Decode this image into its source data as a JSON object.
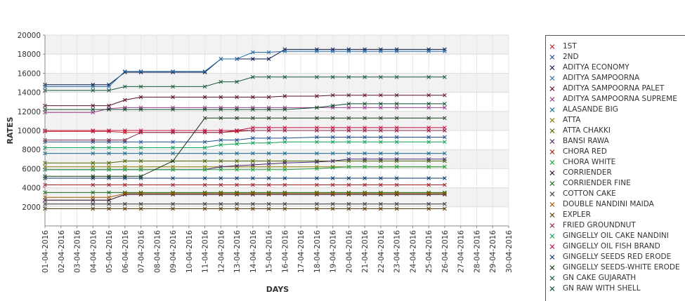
{
  "chart_data": {
    "type": "line",
    "xlabel": "DAYS",
    "ylabel": "RATES",
    "ylim": [
      0,
      20000
    ],
    "yticks": [
      2000,
      4000,
      6000,
      8000,
      10000,
      12000,
      14000,
      16000,
      18000,
      20000
    ],
    "grid": true,
    "legend_position": "right",
    "categories": [
      "01-04-2016",
      "02-04-2016",
      "03-04-2016",
      "04-04-2016",
      "05-04-2016",
      "06-04-2016",
      "07-04-2016",
      "08-04-2016",
      "09-04-2016",
      "10-04-2016",
      "11-04-2016",
      "12-04-2016",
      "13-04-2016",
      "14-04-2016",
      "15-04-2016",
      "16-04-2016",
      "17-04-2016",
      "18-04-2016",
      "19-04-2016",
      "20-04-2016",
      "21-04-2016",
      "22-04-2016",
      "23-04-2016",
      "24-04-2016",
      "25-04-2016",
      "26-04-2016",
      "27-04-2016",
      "28-04-2016",
      "29-04-2016",
      "30-04-2016"
    ],
    "series": [
      {
        "name": "1ST",
        "color": "#c0282a",
        "values": [
          9900,
          null,
          null,
          9900,
          9900,
          9800,
          9800,
          null,
          9800,
          null,
          9800,
          9800,
          9900,
          10000,
          10000,
          10000,
          null,
          10000,
          10000,
          10000,
          10000,
          10000,
          10000,
          null,
          10000,
          10000,
          null,
          null,
          null,
          null
        ]
      },
      {
        "name": "2ND",
        "color": "#1f4e8c",
        "values": [
          8800,
          null,
          null,
          8800,
          8800,
          8800,
          8800,
          null,
          8800,
          null,
          8800,
          9000,
          9000,
          9200,
          9200,
          9200,
          null,
          9300,
          9300,
          9300,
          9300,
          9300,
          9300,
          null,
          9300,
          9300,
          null,
          null,
          null,
          null
        ]
      },
      {
        "name": "ADITYA ECONOMY",
        "color": "#0a1a4a",
        "values": [
          14800,
          null,
          null,
          14800,
          14800,
          16100,
          16100,
          null,
          16100,
          null,
          16100,
          17500,
          17500,
          17500,
          17500,
          18500,
          null,
          18500,
          18500,
          18500,
          18500,
          18500,
          18500,
          null,
          18500,
          18500,
          null,
          null,
          null,
          null
        ]
      },
      {
        "name": "ADITYA SAMPOORNA",
        "color": "#2a6fa8",
        "values": [
          14600,
          null,
          null,
          14600,
          14600,
          16200,
          16200,
          null,
          16200,
          null,
          16200,
          17500,
          17500,
          18200,
          18200,
          18300,
          null,
          18300,
          18300,
          18300,
          18300,
          18300,
          18300,
          null,
          18300,
          18300,
          null,
          null,
          null,
          null
        ]
      },
      {
        "name": "ADITYA SAMPOORNA PALET",
        "color": "#5a1020",
        "values": [
          12600,
          null,
          null,
          12600,
          12600,
          13200,
          13500,
          null,
          13500,
          null,
          13500,
          13500,
          13500,
          13500,
          13500,
          13600,
          null,
          13600,
          13700,
          13700,
          13700,
          13700,
          13700,
          null,
          13700,
          13700,
          null,
          null,
          null,
          null
        ]
      },
      {
        "name": "ADITYA SAMPOORNA SUPREME",
        "color": "#9a3a8a",
        "values": [
          11900,
          null,
          null,
          11900,
          12300,
          12400,
          12400,
          null,
          12400,
          null,
          12400,
          12400,
          12400,
          12400,
          12400,
          12400,
          null,
          12400,
          12400,
          12400,
          12400,
          12400,
          12400,
          null,
          12400,
          12400,
          null,
          null,
          null,
          null
        ]
      },
      {
        "name": "ALASANDE BIG",
        "color": "#1a6a8a",
        "values": [
          7600,
          null,
          null,
          7600,
          7600,
          7600,
          7600,
          null,
          7600,
          null,
          7600,
          7600,
          7600,
          7600,
          7600,
          7600,
          null,
          7600,
          7600,
          7600,
          7600,
          7600,
          7600,
          null,
          7600,
          7600,
          null,
          null,
          null,
          null
        ]
      },
      {
        "name": "ATTA",
        "color": "#8a7a00",
        "values": [
          6200,
          null,
          null,
          6200,
          6200,
          6200,
          6200,
          null,
          6200,
          null,
          6200,
          6200,
          6200,
          6200,
          6200,
          6200,
          null,
          6200,
          6200,
          6200,
          6200,
          6200,
          6200,
          null,
          6200,
          6200,
          null,
          null,
          null,
          null
        ]
      },
      {
        "name": "ATTA CHAKKI",
        "color": "#4a6a00",
        "values": [
          6600,
          null,
          null,
          6600,
          6600,
          6800,
          6800,
          null,
          6800,
          null,
          6800,
          6800,
          6800,
          6800,
          6800,
          6800,
          null,
          6800,
          6800,
          6800,
          6800,
          6800,
          6800,
          null,
          6800,
          6800,
          null,
          null,
          null,
          null
        ]
      },
      {
        "name": "BANSI RAWA",
        "color": "#4a2a6a",
        "values": [
          5900,
          null,
          null,
          5900,
          5900,
          5900,
          5900,
          null,
          5900,
          null,
          5900,
          6200,
          6300,
          6400,
          6500,
          6600,
          null,
          6700,
          6800,
          7000,
          7000,
          7000,
          7000,
          null,
          7000,
          7000,
          null,
          null,
          null,
          null
        ]
      },
      {
        "name": "CHORA RED",
        "color": "#a02020",
        "values": [
          4300,
          null,
          null,
          4300,
          4300,
          4300,
          4300,
          null,
          4300,
          null,
          4300,
          4300,
          4300,
          4300,
          4300,
          4300,
          null,
          4300,
          4300,
          4300,
          4300,
          4300,
          4300,
          null,
          4300,
          4300,
          null,
          null,
          null,
          null
        ]
      },
      {
        "name": "CHORA WHITE",
        "color": "#20a040",
        "values": [
          5900,
          null,
          null,
          5900,
          5900,
          5900,
          5900,
          null,
          5900,
          null,
          5900,
          5900,
          5900,
          5900,
          5900,
          5900,
          null,
          6000,
          6100,
          6200,
          6200,
          6200,
          6200,
          null,
          6200,
          6200,
          null,
          null,
          null,
          null
        ]
      },
      {
        "name": "CORRIENDER",
        "color": "#2a0a2a",
        "values": [
          2700,
          null,
          null,
          2700,
          2700,
          3300,
          3300,
          null,
          3300,
          null,
          3300,
          3300,
          3300,
          3300,
          3300,
          3300,
          null,
          3300,
          3300,
          3300,
          3300,
          3300,
          3300,
          null,
          3300,
          3300,
          null,
          null,
          null,
          null
        ]
      },
      {
        "name": "CORRIENDER FINE",
        "color": "#1a6a1a",
        "values": [
          3500,
          null,
          null,
          3500,
          3500,
          3500,
          3500,
          null,
          3500,
          null,
          3500,
          3500,
          3500,
          3500,
          3500,
          3500,
          null,
          3500,
          3500,
          3500,
          3500,
          3500,
          3500,
          null,
          3500,
          3500,
          null,
          null,
          null,
          null
        ]
      },
      {
        "name": "COTTON CAKE",
        "color": "#3a3a3a",
        "values": [
          2300,
          null,
          null,
          2300,
          2300,
          2300,
          2300,
          null,
          2300,
          null,
          2300,
          2300,
          2300,
          2300,
          2300,
          2300,
          null,
          2300,
          2300,
          2300,
          2300,
          2300,
          2300,
          null,
          2300,
          2300,
          null,
          null,
          null,
          null
        ]
      },
      {
        "name": "DOUBLE NANDINI MAIDA",
        "color": "#a05a00",
        "values": [
          3000,
          null,
          null,
          3000,
          3000,
          3400,
          3400,
          null,
          3400,
          null,
          3400,
          3400,
          3400,
          3400,
          3400,
          3400,
          null,
          3400,
          3400,
          3400,
          3400,
          3400,
          3400,
          null,
          3400,
          3400,
          null,
          null,
          null,
          null
        ]
      },
      {
        "name": "EXPLER",
        "color": "#5a3a00",
        "values": [
          1800,
          null,
          null,
          1800,
          1800,
          1800,
          1800,
          null,
          1800,
          null,
          1800,
          1800,
          1800,
          1800,
          1800,
          1800,
          null,
          1800,
          1800,
          1800,
          1800,
          1800,
          1800,
          null,
          1800,
          1800,
          null,
          null,
          null,
          null
        ]
      },
      {
        "name": "FRIED GROUNDNUT",
        "color": "#8a2a4a",
        "values": [
          9000,
          null,
          null,
          9000,
          9000,
          9000,
          9800,
          null,
          9800,
          null,
          9800,
          9800,
          10000,
          10000,
          10000,
          10000,
          null,
          10000,
          10000,
          10000,
          10000,
          10000,
          10000,
          null,
          10000,
          10000,
          null,
          null,
          null,
          null
        ]
      },
      {
        "name": "GINGELLY OIL CAKE NANDINI",
        "color": "#10a050",
        "values": [
          8200,
          null,
          null,
          8200,
          8200,
          8200,
          8200,
          null,
          8200,
          null,
          8200,
          8500,
          8600,
          8700,
          8700,
          8800,
          null,
          8800,
          8800,
          8800,
          8800,
          8800,
          8800,
          null,
          8800,
          8800,
          null,
          null,
          null,
          null
        ]
      },
      {
        "name": "GINGELLY OIL FISH BRAND",
        "color": "#c01040",
        "values": [
          10000,
          null,
          null,
          10000,
          10000,
          10000,
          10000,
          null,
          10000,
          null,
          10000,
          10000,
          10000,
          10300,
          10300,
          10300,
          null,
          10300,
          10300,
          10300,
          10300,
          10300,
          10300,
          null,
          10300,
          10300,
          null,
          null,
          null,
          null
        ]
      },
      {
        "name": "GINGELLY SEEDS RED ERODE",
        "color": "#0a3a6a",
        "values": [
          5000,
          null,
          null,
          5000,
          5000,
          5000,
          5000,
          null,
          5000,
          null,
          5000,
          5000,
          5000,
          5000,
          5000,
          5000,
          null,
          5000,
          5000,
          5000,
          5000,
          5000,
          5000,
          null,
          5000,
          5000,
          null,
          null,
          null,
          null
        ]
      },
      {
        "name": "GINGELLY SEEDS-WHITE ERODE",
        "color": "#1a3a1a",
        "values": [
          5200,
          null,
          null,
          5200,
          5200,
          5200,
          5200,
          null,
          6800,
          null,
          11300,
          11300,
          11300,
          11300,
          11300,
          11300,
          null,
          11300,
          11300,
          11300,
          11300,
          11300,
          11300,
          null,
          11300,
          11300,
          null,
          null,
          null,
          null
        ]
      },
      {
        "name": "GN CAKE GUJARATH",
        "color": "#1a5a3a",
        "values": [
          14200,
          null,
          null,
          14200,
          14200,
          14600,
          14600,
          null,
          14600,
          null,
          14600,
          15100,
          15100,
          15600,
          15600,
          15600,
          null,
          15600,
          15600,
          15600,
          15600,
          15600,
          15600,
          null,
          15600,
          15600,
          null,
          null,
          null,
          null
        ]
      },
      {
        "name": "GN RAW WITH SHELL",
        "color": "#0a4a2a",
        "values": [
          12200,
          null,
          null,
          12200,
          12200,
          12200,
          12200,
          null,
          12200,
          null,
          12200,
          12200,
          12200,
          12200,
          12200,
          12200,
          null,
          12400,
          12600,
          12800,
          12800,
          12800,
          12800,
          null,
          12800,
          12800,
          null,
          null,
          null,
          null
        ]
      }
    ]
  }
}
